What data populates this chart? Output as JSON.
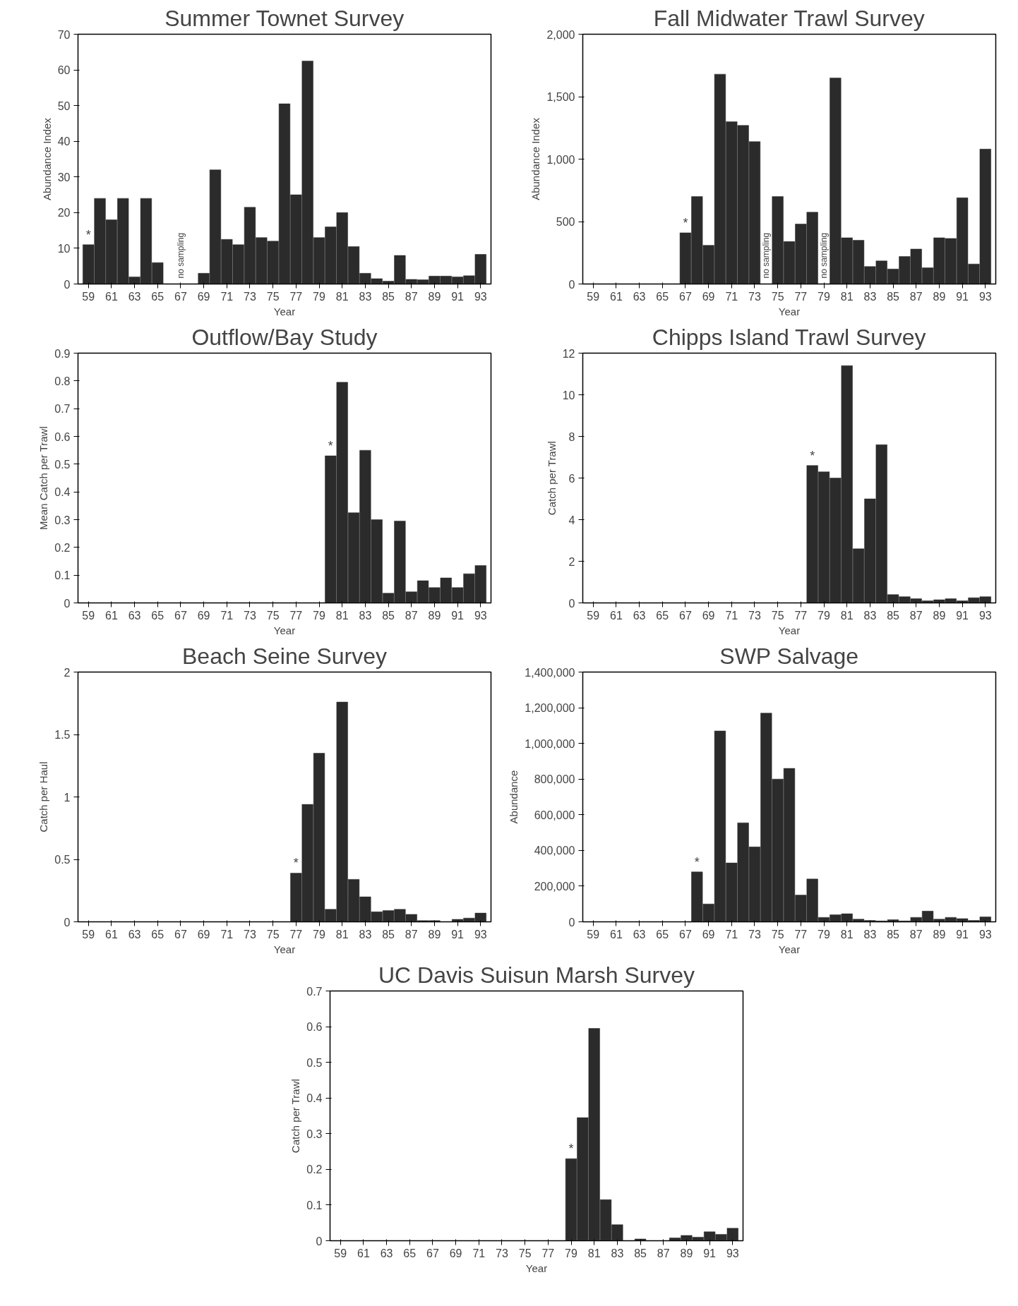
{
  "chart_data": [
    {
      "type": "bar",
      "title": "Summer Townet Survey",
      "xlabel": "Year",
      "ylabel": "Abundance Index",
      "color": "#2b2b2b",
      "categories": [
        "59",
        null,
        "61",
        null,
        "63",
        null,
        "65",
        null,
        "67",
        null,
        "69",
        null,
        "71",
        null,
        "73",
        null,
        "75",
        null,
        "77",
        null,
        "79",
        null,
        "81",
        null,
        "83",
        null,
        "85",
        null,
        "87",
        null,
        "89",
        null,
        "91",
        null,
        "93"
      ],
      "values": [
        11,
        24,
        18,
        24,
        2,
        24,
        6,
        null,
        null,
        null,
        3,
        32,
        12.5,
        11,
        21.5,
        13,
        12,
        50.5,
        25,
        62.5,
        13,
        16,
        20,
        10.5,
        3,
        1.5,
        0.8,
        8,
        1.3,
        1.2,
        2.2,
        2.2,
        2,
        2.3,
        8.3
      ],
      "ylim": [
        0,
        70
      ],
      "yticks": [
        0,
        10,
        20,
        30,
        40,
        50,
        60,
        70
      ],
      "annotations": [
        "*",
        "no sampling"
      ]
    },
    {
      "type": "bar",
      "title": "Fall Midwater Trawl Survey",
      "xlabel": "Year",
      "ylabel": "Abundance Index",
      "color": "#2b2b2b",
      "categories": [
        "59",
        null,
        "61",
        null,
        "63",
        null,
        "65",
        null,
        "67",
        null,
        "69",
        null,
        "71",
        null,
        "73",
        null,
        "75",
        null,
        "77",
        null,
        "79",
        null,
        "81",
        null,
        "83",
        null,
        "85",
        null,
        "87",
        null,
        "89",
        null,
        "91",
        null,
        "93"
      ],
      "values": [
        null,
        null,
        null,
        null,
        null,
        null,
        null,
        null,
        410,
        700,
        310,
        1680,
        1300,
        1270,
        1140,
        null,
        700,
        340,
        480,
        575,
        null,
        1650,
        370,
        350,
        140,
        185,
        120,
        220,
        280,
        130,
        370,
        365,
        690,
        160,
        1080
      ],
      "ylim": [
        0,
        2000
      ],
      "yticks": [
        0,
        500,
        {
          "value": 1000,
          "label": "1,000"
        },
        {
          "value": 1500,
          "label": "1,500"
        },
        {
          "value": 2000,
          "label": "2,000"
        }
      ],
      "annotations": [
        "*",
        "no sampling",
        "no sampling"
      ]
    },
    {
      "type": "bar",
      "title": "Outflow/Bay Study",
      "xlabel": "Year",
      "ylabel": "Mean Catch per Trawl",
      "color": "#2b2b2b",
      "categories": [
        "59",
        null,
        "61",
        null,
        "63",
        null,
        "65",
        null,
        "67",
        null,
        "69",
        null,
        "71",
        null,
        "73",
        null,
        "75",
        null,
        "77",
        null,
        "79",
        null,
        "81",
        null,
        "83",
        null,
        "85",
        null,
        "87",
        null,
        "89",
        null,
        "91",
        null,
        "93"
      ],
      "values": [
        null,
        null,
        null,
        null,
        null,
        null,
        null,
        null,
        null,
        null,
        null,
        null,
        null,
        null,
        null,
        null,
        null,
        null,
        null,
        null,
        null,
        0.53,
        0.795,
        0.325,
        0.55,
        0.3,
        0.035,
        0.295,
        0.04,
        0.08,
        0.055,
        0.09,
        0.055,
        0.105,
        0.135
      ],
      "ylim": [
        0,
        0.9
      ],
      "yticks": [
        0,
        0.1,
        0.2,
        0.3,
        0.4,
        0.5,
        0.6,
        0.7,
        0.8,
        0.9
      ],
      "annotations": [
        "*"
      ]
    },
    {
      "type": "bar",
      "title": "Chipps Island Trawl Survey",
      "xlabel": "Year",
      "ylabel": "Catch per Trawl",
      "color": "#2b2b2b",
      "categories": [
        "59",
        null,
        "61",
        null,
        "63",
        null,
        "65",
        null,
        "67",
        null,
        "69",
        null,
        "71",
        null,
        "73",
        null,
        "75",
        null,
        "77",
        null,
        "79",
        null,
        "81",
        null,
        "83",
        null,
        "85",
        null,
        "87",
        null,
        "89",
        null,
        "91",
        null,
        "93"
      ],
      "values": [
        null,
        null,
        null,
        null,
        null,
        null,
        null,
        null,
        null,
        null,
        null,
        null,
        null,
        null,
        null,
        null,
        null,
        null,
        null,
        6.6,
        6.3,
        6.0,
        11.4,
        2.6,
        5.0,
        7.6,
        0.4,
        0.3,
        0.2,
        0.1,
        0.15,
        0.2,
        0.1,
        0.25,
        0.3
      ],
      "ylim": [
        0,
        12
      ],
      "yticks": [
        0,
        2,
        4,
        6,
        8,
        10,
        12
      ],
      "annotations": [
        "*"
      ]
    },
    {
      "type": "bar",
      "title": "Beach Seine Survey",
      "xlabel": "Year",
      "ylabel": "Catch per Haul",
      "color": "#2b2b2b",
      "categories": [
        "59",
        null,
        "61",
        null,
        "63",
        null,
        "65",
        null,
        "67",
        null,
        "69",
        null,
        "71",
        null,
        "73",
        null,
        "75",
        null,
        "77",
        null,
        "79",
        null,
        "81",
        null,
        "83",
        null,
        "85",
        null,
        "87",
        null,
        "89",
        null,
        "91",
        null,
        "93"
      ],
      "values": [
        null,
        null,
        null,
        null,
        null,
        null,
        null,
        null,
        null,
        null,
        null,
        null,
        null,
        null,
        null,
        null,
        null,
        null,
        0.39,
        0.94,
        1.35,
        0.1,
        1.76,
        0.34,
        0.2,
        0.08,
        0.09,
        0.1,
        0.06,
        0.01,
        0.01,
        0,
        0.02,
        0.03,
        0.07
      ],
      "ylim": [
        0,
        2
      ],
      "yticks": [
        0,
        0.5,
        1,
        1.5,
        2
      ],
      "annotations": [
        "*"
      ]
    },
    {
      "type": "bar",
      "title": "SWP Salvage",
      "xlabel": "Year",
      "ylabel": "Abundance",
      "color": "#2b2b2b",
      "categories": [
        "59",
        null,
        "61",
        null,
        "63",
        null,
        "65",
        null,
        "67",
        null,
        "69",
        null,
        "71",
        null,
        "73",
        null,
        "75",
        null,
        "77",
        null,
        "79",
        null,
        "81",
        null,
        "83",
        null,
        "85",
        null,
        "87",
        null,
        "89",
        null,
        "91",
        null,
        "93"
      ],
      "values": [
        null,
        null,
        null,
        null,
        null,
        null,
        null,
        null,
        null,
        280000,
        100000,
        1070000,
        330000,
        555000,
        420000,
        1170000,
        800000,
        860000,
        150000,
        240000,
        25000,
        40000,
        45000,
        15000,
        8000,
        5000,
        12000,
        5000,
        25000,
        60000,
        15000,
        25000,
        18000,
        8000,
        28000
      ],
      "ylim": [
        0,
        1400000
      ],
      "yticks": [
        {
          "value": 0,
          "label": "0"
        },
        {
          "value": 200000,
          "label": "200,000"
        },
        {
          "value": 400000,
          "label": "400,000"
        },
        {
          "value": 600000,
          "label": "600,000"
        },
        {
          "value": 800000,
          "label": "800,000"
        },
        {
          "value": 1000000,
          "label": "1,000,000"
        },
        {
          "value": 1200000,
          "label": "1,200,000"
        },
        {
          "value": 1400000,
          "label": "1,400,000"
        }
      ],
      "annotations": [
        "*"
      ]
    },
    {
      "type": "bar",
      "title": "UC Davis Suisun Marsh Survey",
      "xlabel": "Year",
      "ylabel": "Catch per Trawl",
      "color": "#2b2b2b",
      "categories": [
        "59",
        null,
        "61",
        null,
        "63",
        null,
        "65",
        null,
        "67",
        null,
        "69",
        null,
        "71",
        null,
        "73",
        null,
        "75",
        null,
        "77",
        null,
        "79",
        null,
        "81",
        null,
        "83",
        null,
        "85",
        null,
        "87",
        null,
        "89",
        null,
        "91",
        null,
        "93"
      ],
      "values": [
        null,
        null,
        null,
        null,
        null,
        null,
        null,
        null,
        null,
        null,
        null,
        null,
        null,
        null,
        null,
        null,
        null,
        null,
        null,
        null,
        0.23,
        0.345,
        0.595,
        0.115,
        0.045,
        null,
        0.005,
        null,
        null,
        0.008,
        0.015,
        0.01,
        0.025,
        0.018,
        0.035
      ],
      "ylim": [
        0,
        0.7
      ],
      "yticks": [
        0,
        0.1,
        0.2,
        0.3,
        0.4,
        0.5,
        0.6,
        0.7
      ],
      "annotations": [
        "*"
      ]
    }
  ]
}
